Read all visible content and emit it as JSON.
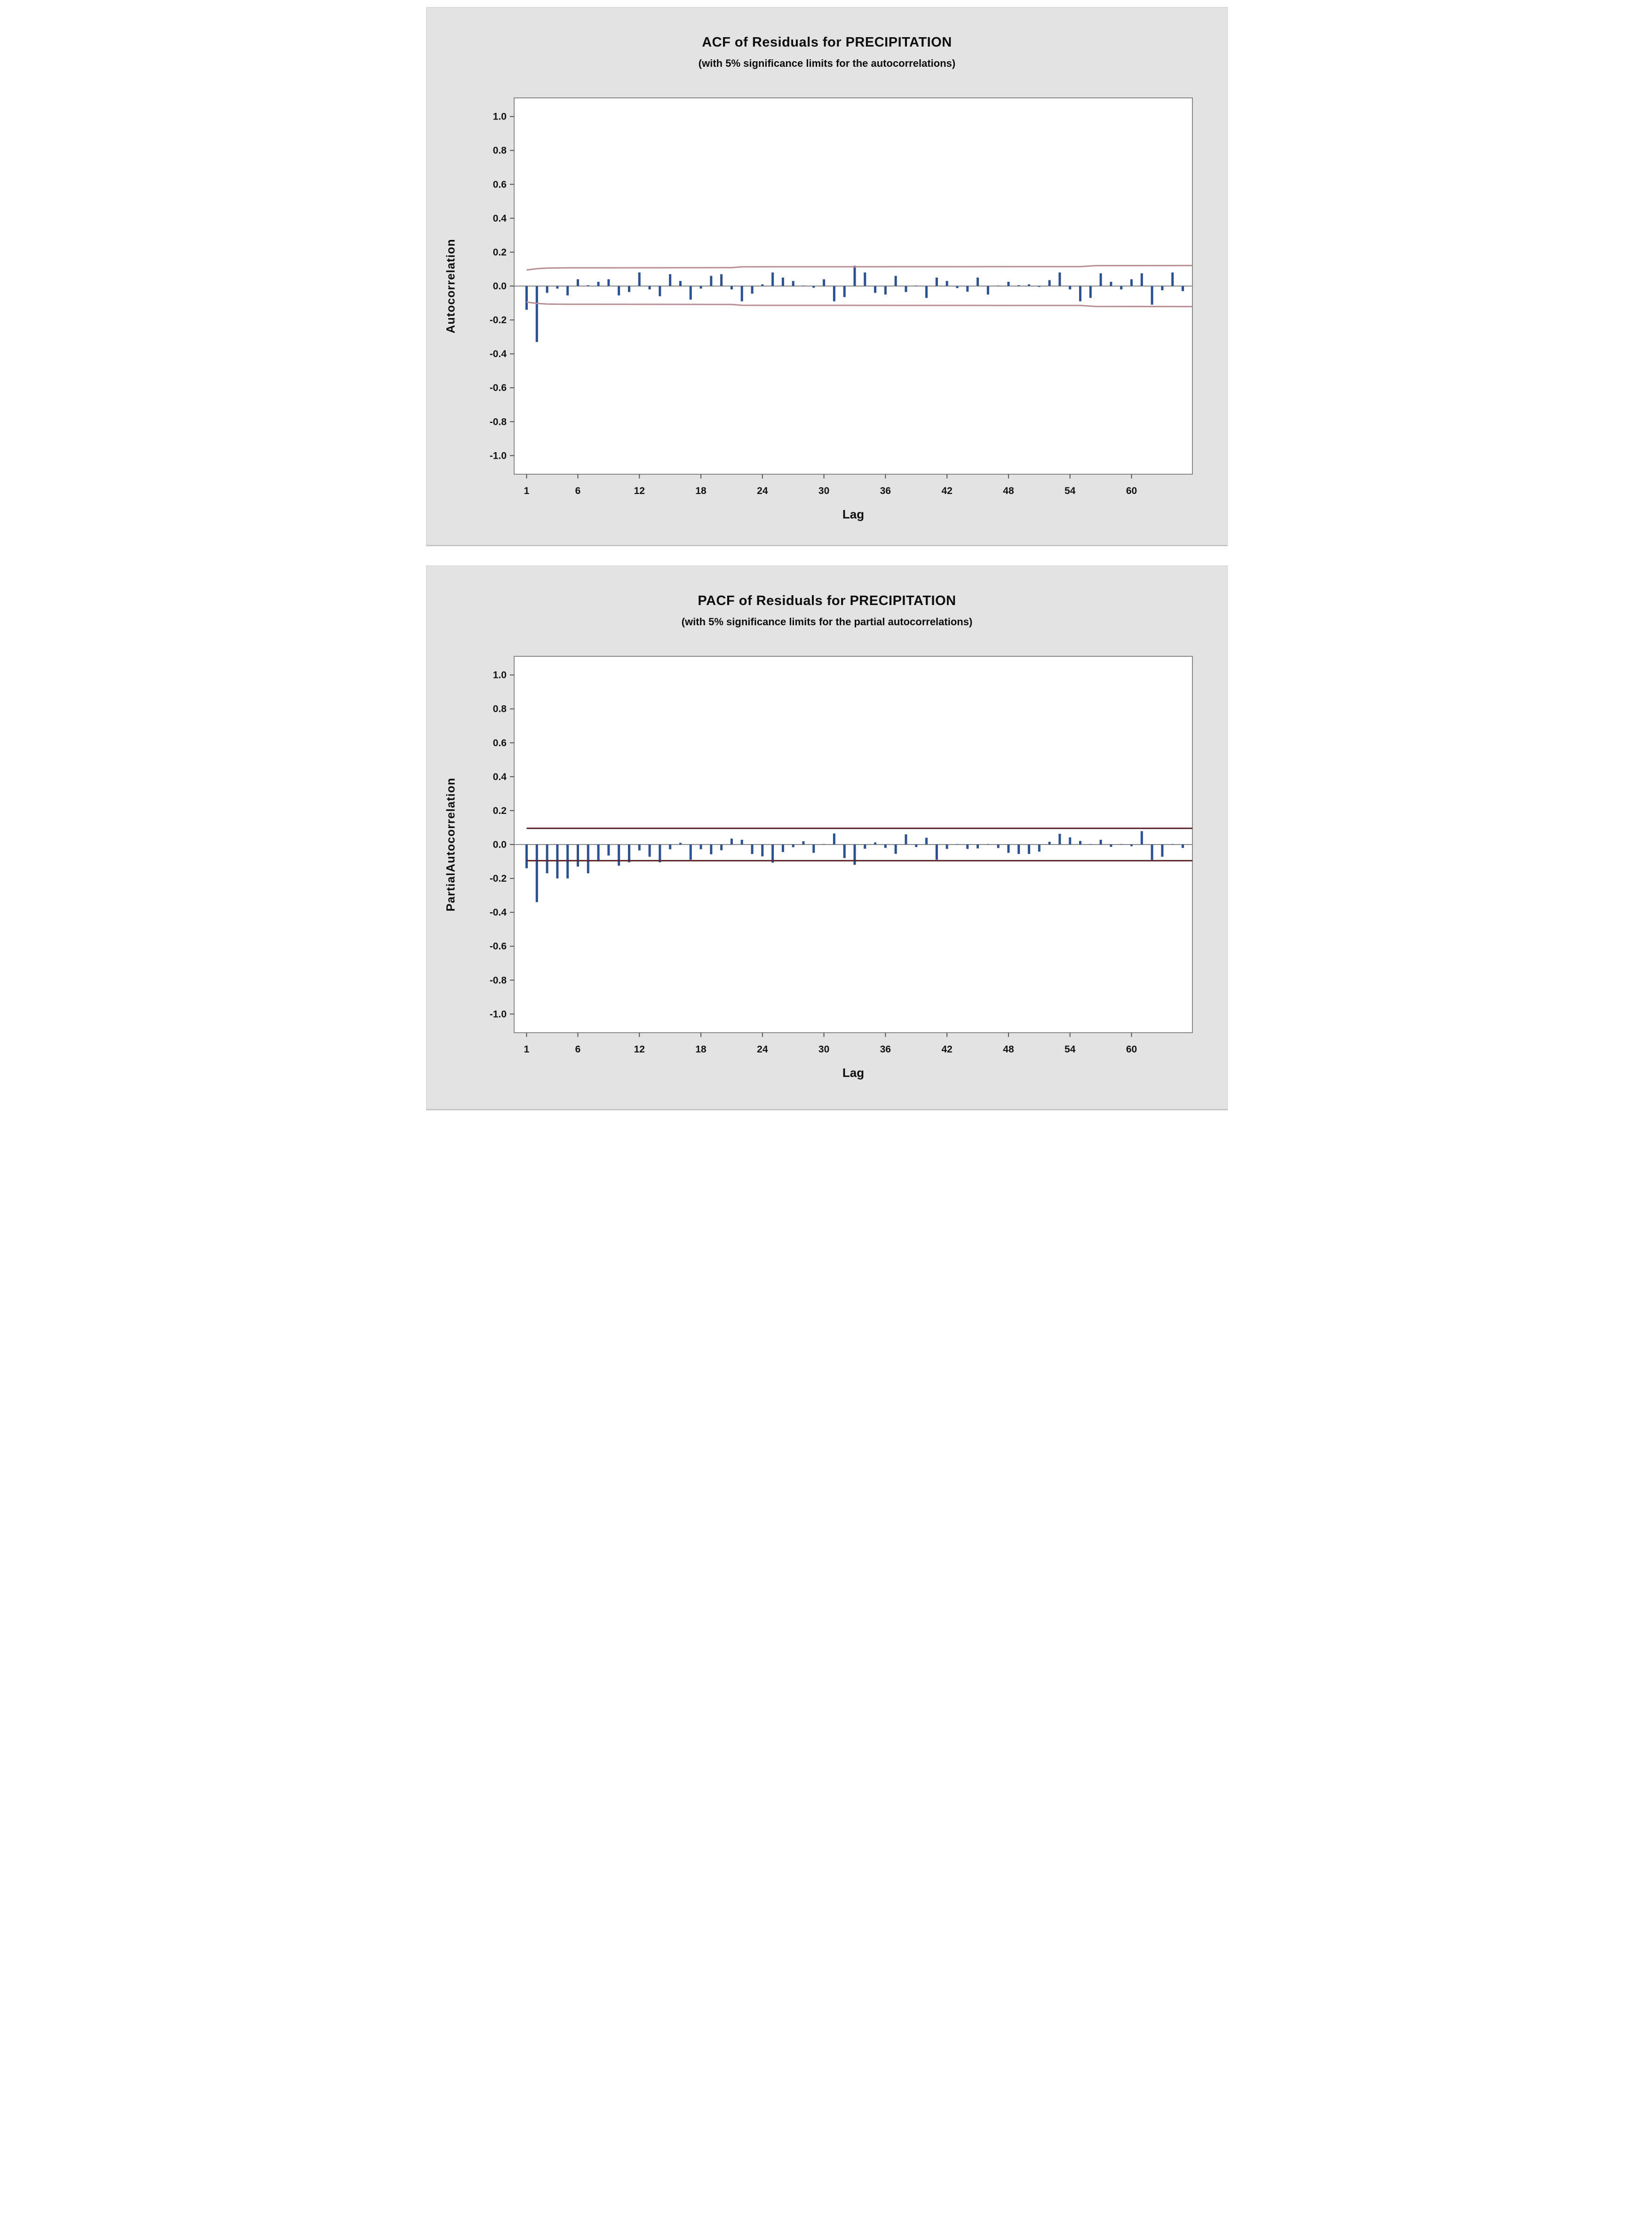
{
  "page": {
    "background": "#ffffff",
    "panel_background": "#e3e3e3"
  },
  "chart_data": [
    {
      "id": "acf",
      "type": "bar",
      "title": "ACF of Residuals for PRECIPITATION",
      "subtitle": "(with 5% significance limits for the autocorrelations)",
      "ylabel": "Autocorrelation",
      "xlabel": "Lag",
      "ylim": [
        -1.11,
        1.11
      ],
      "yticks": [
        1.0,
        0.8,
        0.6,
        0.4,
        0.2,
        0.0,
        -0.2,
        -0.4,
        -0.6,
        -0.8,
        -1.0
      ],
      "xticks": [
        1,
        6,
        12,
        18,
        24,
        30,
        36,
        42,
        48,
        54,
        60
      ],
      "lag_count": 65,
      "grid": false,
      "legend": "none",
      "values": [
        -0.14,
        -0.33,
        -0.04,
        -0.015,
        -0.055,
        0.04,
        0.005,
        0.025,
        0.04,
        -0.055,
        -0.035,
        0.08,
        -0.02,
        -0.06,
        0.07,
        0.03,
        -0.08,
        -0.015,
        0.06,
        0.07,
        -0.02,
        -0.09,
        -0.045,
        0.01,
        0.08,
        0.05,
        0.03,
        0.0,
        -0.01,
        0.04,
        -0.09,
        -0.065,
        0.12,
        0.08,
        -0.04,
        -0.05,
        0.06,
        -0.035,
        0.0,
        -0.07,
        0.05,
        0.03,
        -0.012,
        -0.033,
        0.05,
        -0.05,
        0.0,
        0.025,
        0.005,
        0.01,
        -0.005,
        0.035,
        0.08,
        -0.02,
        -0.09,
        -0.07,
        0.075,
        0.025,
        -0.02,
        0.04,
        0.075,
        -0.11,
        -0.025,
        0.08,
        -0.03
      ],
      "significance_limits": {
        "description": "5% significance limits, mirrored about zero",
        "envelope_points": [
          [
            1,
            0.0945
          ],
          [
            2,
            0.1025
          ],
          [
            3,
            0.106
          ],
          [
            5,
            0.1075
          ],
          [
            21,
            0.1085
          ],
          [
            22,
            0.1135
          ],
          [
            55,
            0.1145
          ],
          [
            56.5,
            0.1205
          ],
          [
            65,
            0.121
          ]
        ],
        "extend_to_right_edge": true
      },
      "colors": {
        "bar": "#2b5191",
        "limit_line": "#b98f95",
        "zero_line": "#8a8a8a",
        "plot_border": "#8a8a8a",
        "plot_bg": "#ffffff"
      }
    },
    {
      "id": "pacf",
      "type": "bar",
      "title": "PACF of Residuals for PRECIPITATION",
      "subtitle": "(with 5% significance limits for the partial autocorrelations)",
      "ylabel": "PartialAutocorrelation",
      "xlabel": "Lag",
      "ylim": [
        -1.11,
        1.11
      ],
      "yticks": [
        1.0,
        0.8,
        0.6,
        0.4,
        0.2,
        0.0,
        -0.2,
        -0.4,
        -0.6,
        -0.8,
        -1.0
      ],
      "xticks": [
        1,
        6,
        12,
        18,
        24,
        30,
        36,
        42,
        48,
        54,
        60
      ],
      "lag_count": 65,
      "grid": false,
      "legend": "none",
      "values": [
        -0.14,
        -0.34,
        -0.17,
        -0.2,
        -0.2,
        -0.13,
        -0.17,
        -0.1,
        -0.065,
        -0.125,
        -0.105,
        -0.035,
        -0.072,
        -0.105,
        -0.028,
        0.01,
        -0.09,
        -0.028,
        -0.058,
        -0.034,
        0.035,
        0.028,
        -0.056,
        -0.07,
        -0.107,
        -0.044,
        -0.016,
        0.019,
        -0.049,
        0.0,
        0.065,
        -0.08,
        -0.12,
        -0.025,
        0.012,
        -0.02,
        -0.055,
        0.06,
        -0.015,
        0.04,
        -0.09,
        -0.026,
        0.0,
        -0.026,
        -0.023,
        0.0,
        -0.021,
        -0.049,
        -0.056,
        -0.056,
        -0.042,
        0.016,
        0.063,
        0.042,
        0.021,
        0.0,
        0.028,
        -0.014,
        0.0,
        -0.01,
        0.079,
        -0.091,
        -0.072,
        0.0,
        -0.02
      ],
      "significance_limits": {
        "description": "5% significance limits, mirrored about zero",
        "envelope_points": [
          [
            1,
            0.0955
          ],
          [
            65,
            0.0955
          ]
        ],
        "extend_to_right_edge": true
      },
      "colors": {
        "bar": "#2b5191",
        "limit_line": "#5d2328",
        "zero_line": "#8a8a8a",
        "plot_border": "#8a8a8a",
        "plot_bg": "#ffffff"
      }
    }
  ]
}
